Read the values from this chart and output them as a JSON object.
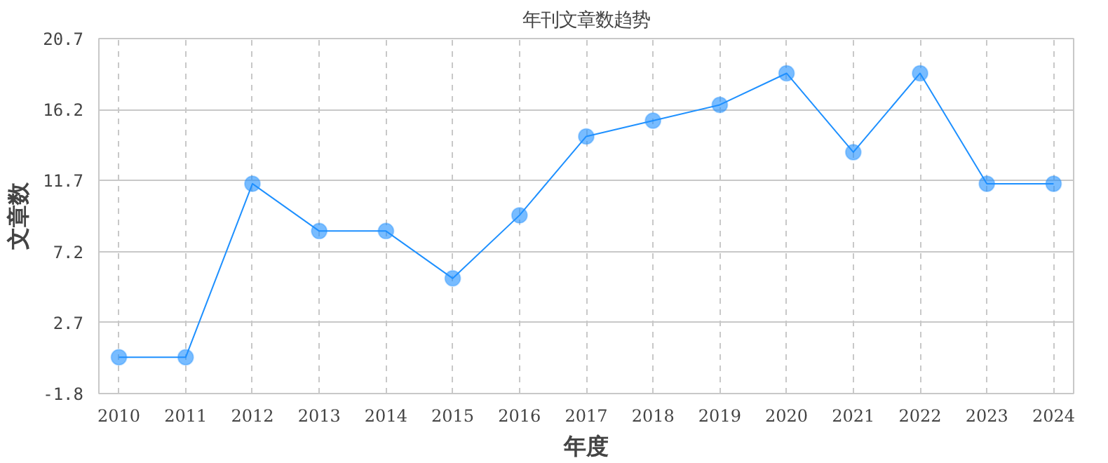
{
  "chart_data": {
    "type": "line",
    "title": "年刊文章数趋势",
    "xlabel": "年度",
    "ylabel": "文章数",
    "categories": [
      "2010",
      "2011",
      "2012",
      "2013",
      "2014",
      "2015",
      "2016",
      "2017",
      "2018",
      "2019",
      "2020",
      "2021",
      "2022",
      "2023",
      "2024"
    ],
    "series": [
      {
        "color": "#1e90ff",
        "values": [
          0.5,
          0.5,
          11.5,
          8.5,
          8.5,
          5.5,
          9.5,
          14.5,
          15.5,
          16.5,
          18.5,
          13.5,
          18.5,
          11.5,
          11.5
        ]
      }
    ],
    "ylim": [
      -1.8,
      20.7
    ],
    "yticks": [
      -1.8,
      2.7,
      7.2,
      11.7,
      16.2,
      20.7
    ],
    "grid": true,
    "marker": "circle",
    "line_style": "solid"
  }
}
